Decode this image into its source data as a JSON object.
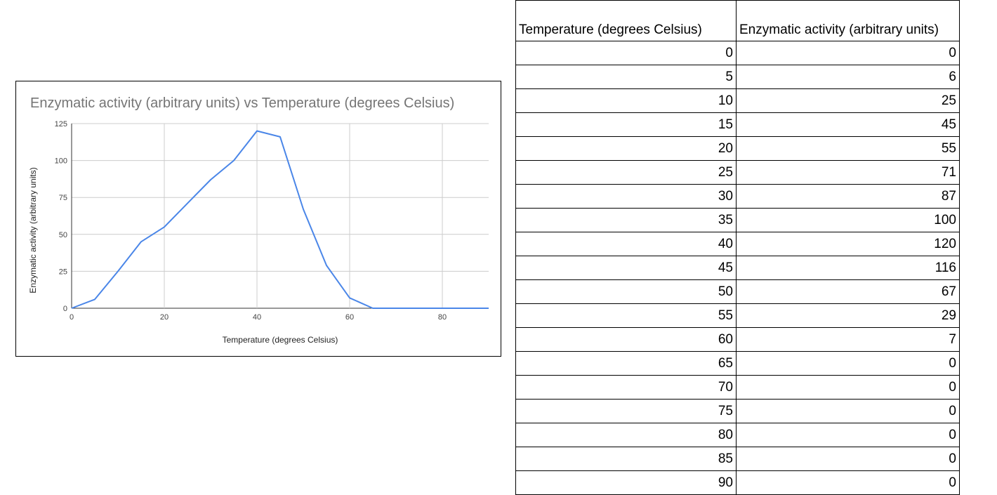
{
  "colors": {
    "series": "#4a86e8",
    "grid": "#cccccc",
    "title": "#757575",
    "axis": "#333333"
  },
  "chart_data": {
    "type": "line",
    "title": "Enzymatic activity (arbitrary units) vs Temperature (degrees Celsius)",
    "xlabel": "Temperature (degrees Celsius)",
    "ylabel": "Enzymatic activity (arbitrary units)",
    "xlim": [
      0,
      90
    ],
    "ylim": [
      0,
      125
    ],
    "xticks": [
      0,
      20,
      40,
      60,
      80
    ],
    "yticks": [
      0,
      25,
      50,
      75,
      100,
      125
    ],
    "grid": true,
    "x": [
      0,
      5,
      10,
      15,
      20,
      25,
      30,
      35,
      40,
      45,
      50,
      55,
      60,
      65,
      70,
      75,
      80,
      85,
      90
    ],
    "y": [
      0,
      6,
      25,
      45,
      55,
      71,
      87,
      100,
      120,
      116,
      67,
      29,
      7,
      0,
      0,
      0,
      0,
      0,
      0
    ]
  },
  "table": {
    "headers": [
      "Temperature (degrees Celsius)",
      "Enzymatic activity (arbitrary units)"
    ],
    "rows": [
      [
        "0",
        "0"
      ],
      [
        "5",
        "6"
      ],
      [
        "10",
        "25"
      ],
      [
        "15",
        "45"
      ],
      [
        "20",
        "55"
      ],
      [
        "25",
        "71"
      ],
      [
        "30",
        "87"
      ],
      [
        "35",
        "100"
      ],
      [
        "40",
        "120"
      ],
      [
        "45",
        "116"
      ],
      [
        "50",
        "67"
      ],
      [
        "55",
        "29"
      ],
      [
        "60",
        "7"
      ],
      [
        "65",
        "0"
      ],
      [
        "70",
        "0"
      ],
      [
        "75",
        "0"
      ],
      [
        "80",
        "0"
      ],
      [
        "85",
        "0"
      ],
      [
        "90",
        "0"
      ]
    ]
  }
}
